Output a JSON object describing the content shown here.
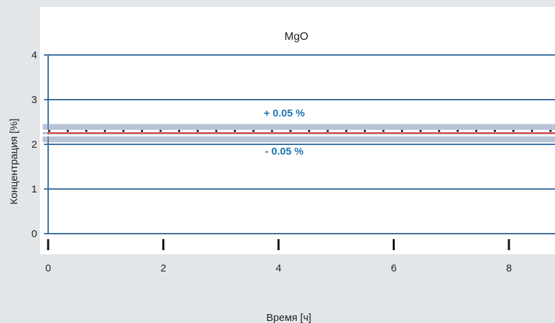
{
  "chart_data": {
    "type": "line",
    "title": "MgO",
    "xlabel": "Время [ч]",
    "ylabel": "Концентрация [%]",
    "xlim": [
      0,
      8.8
    ],
    "ylim": [
      0,
      4
    ],
    "x_ticks": [
      0,
      2,
      4,
      6,
      8
    ],
    "x_tick_labels": [
      "0",
      "2",
      "4",
      "6",
      "8"
    ],
    "y_ticks": [
      0,
      1,
      2,
      3,
      4
    ],
    "y_tick_labels": [
      "0",
      "1",
      "2",
      "3",
      "4"
    ],
    "grid": "horizontal",
    "series": [
      {
        "style": "dotted",
        "color": "#333333",
        "x": [
          0,
          8.8
        ],
        "y": [
          2.3,
          2.3
        ]
      },
      {
        "style": "solid",
        "color": "#e53935",
        "x": [
          0,
          8.8
        ],
        "y": [
          2.25,
          2.25
        ]
      }
    ],
    "tolerance_band": {
      "center": 2.25,
      "upper": 2.3,
      "lower": 2.2
    },
    "annotations": [
      {
        "text": "+ 0.05 %",
        "x": 4.1,
        "y": 2.7
      },
      {
        "text": "- 0.05 %",
        "x": 4.1,
        "y": 1.85
      }
    ],
    "colors": {
      "background": "#e3e6e9",
      "plot_background": "#ffffff",
      "grid": "#3a6f9e",
      "band": "#7d93b4",
      "annotation": "#1a73b3"
    }
  }
}
